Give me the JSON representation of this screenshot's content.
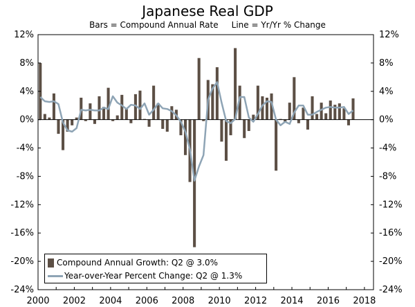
{
  "chart_data": {
    "type": "bar",
    "title": "Japanese Real GDP",
    "subtitle": "Bars = Compound Annual Rate     Line = Yr/Yr % Change",
    "ylim": [
      -24,
      12
    ],
    "xlim": [
      2000,
      2018.5
    ],
    "y_ticks": [
      "12%",
      "8%",
      "4%",
      "0%",
      "-4%",
      "-8%",
      "-12%",
      "-16%",
      "-20%",
      "-24%"
    ],
    "x_ticks": [
      "2000",
      "2002",
      "2004",
      "2006",
      "2008",
      "2010",
      "2012",
      "2014",
      "2016",
      "2018"
    ],
    "grid": false,
    "legend_placement": "bottom-left",
    "colors": {
      "bars": "#5c4f45",
      "line": "#8ea4b5"
    },
    "series": [
      {
        "name": "Compound Annual Growth: Q2 @ 3.0%",
        "type": "bar",
        "start": "2000-Q1",
        "values": [
          8.0,
          0.8,
          0.3,
          3.7,
          -2.0,
          -4.3,
          -1.7,
          -0.8,
          0.3,
          3.1,
          -0.2,
          2.3,
          -0.6,
          3.3,
          1.8,
          4.5,
          -0.2,
          0.6,
          3.5,
          1.5,
          -0.5,
          3.6,
          4.1,
          0.1,
          -1.0,
          4.8,
          2.3,
          -1.3,
          -1.7,
          1.9,
          1.4,
          -2.2,
          -5.0,
          -8.8,
          -18.0,
          8.7,
          -0.2,
          5.6,
          5.0,
          7.4,
          -3.1,
          -5.8,
          -2.2,
          10.1,
          4.8,
          -2.6,
          -1.6,
          0.7,
          4.8,
          3.3,
          3.1,
          3.7,
          -7.2,
          0.1,
          -0.3,
          2.4,
          6.0,
          -0.5,
          1.7,
          -1.4,
          3.3,
          0.8,
          2.4,
          0.9,
          2.7,
          2.1,
          2.3,
          1.6,
          -0.8,
          3.0
        ]
      },
      {
        "name": "Year-over-Year Percent Change: Q2 @ 1.3%",
        "type": "line",
        "start": "2000-Q1",
        "values": [
          3.2,
          2.6,
          2.5,
          2.6,
          2.2,
          -0.4,
          -1.5,
          -1.7,
          -1.2,
          1.4,
          1.3,
          1.4,
          1.3,
          1.3,
          1.7,
          1.5,
          3.3,
          2.4,
          2.0,
          1.5,
          2.1,
          2.0,
          1.5,
          2.3,
          0.7,
          1.4,
          2.3,
          1.6,
          1.5,
          1.2,
          0.6,
          -0.3,
          -1.7,
          -4.2,
          -8.6,
          -6.6,
          -5.0,
          2.8,
          4.4,
          5.3,
          2.4,
          -0.2,
          -0.5,
          0.1,
          3.2,
          3.2,
          0.3,
          -0.3,
          0.8,
          2.0,
          2.6,
          2.5,
          0.0,
          -0.8,
          -0.3,
          -0.6,
          1.0,
          2.0,
          2.0,
          0.7,
          0.7,
          1.1,
          1.4,
          1.7,
          1.8,
          1.7,
          1.7,
          1.8,
          0.8,
          1.3
        ]
      }
    ]
  }
}
